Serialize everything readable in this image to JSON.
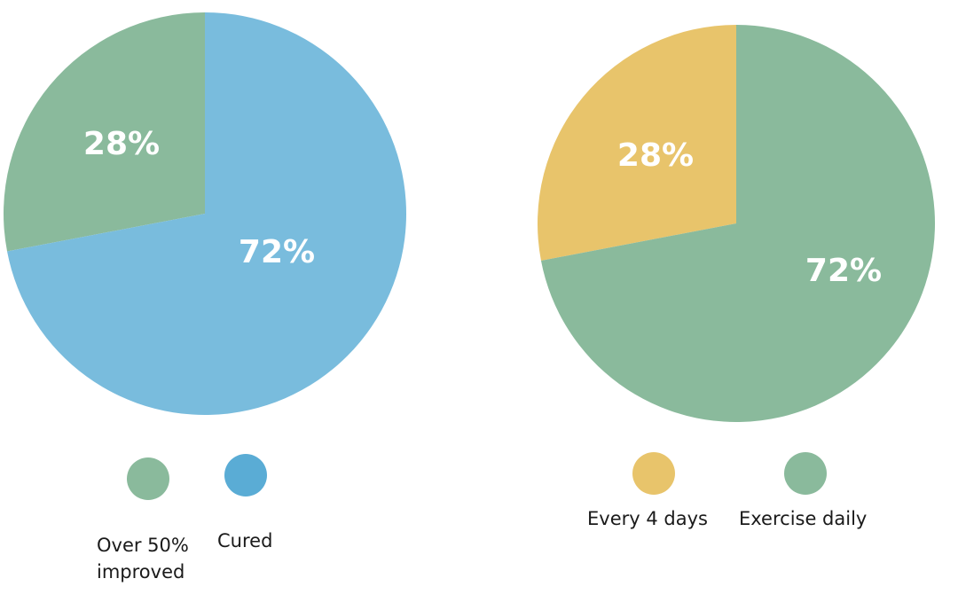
{
  "chart_data": [
    {
      "type": "pie",
      "slices": [
        {
          "label": "Over 50%\nimproved",
          "value": 28,
          "value_label": "28%",
          "color": "#8aba9c"
        },
        {
          "label": "Cured",
          "value": 72,
          "value_label": "72%",
          "color": "#79bcdd"
        }
      ],
      "legend_colors": [
        "#8aba9c",
        "#5aacd5"
      ],
      "legend_placement": "bottom"
    },
    {
      "type": "pie",
      "slices": [
        {
          "label": "Every 4 days",
          "value": 28,
          "value_label": "28%",
          "color": "#e8c46b"
        },
        {
          "label": "Exercise daily",
          "value": 72,
          "value_label": "72%",
          "color": "#8aba9c"
        }
      ],
      "legend_colors": [
        "#e8c46b",
        "#8aba9c"
      ],
      "legend_placement": "bottom"
    }
  ]
}
